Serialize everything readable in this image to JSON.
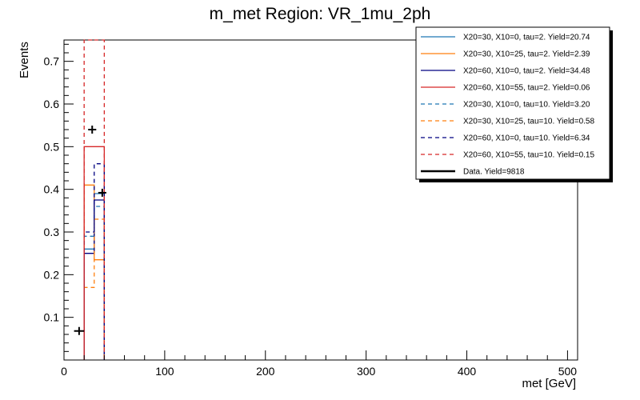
{
  "chart_data": {
    "type": "histogram",
    "title": "m_met Region: VR_1mu_2ph",
    "xlabel": "met [GeV]",
    "ylabel": "Events",
    "xlim": [
      0,
      510
    ],
    "ylim": [
      0,
      0.75
    ],
    "x_ticks": [
      0,
      100,
      200,
      300,
      400,
      500
    ],
    "y_ticks": [
      0.1,
      0.2,
      0.3,
      0.4,
      0.5,
      0.6,
      0.7
    ],
    "bin_edges": [
      20,
      30,
      40
    ],
    "series": [
      {
        "name": "X20=30, X10=0, tau=2. Yield=20.74",
        "color": "#1f77b4",
        "style": "solid",
        "values": [
          0.26,
          0.39
        ]
      },
      {
        "name": "X20=30, X10=25, tau=2. Yield=2.39",
        "color": "#ff7f0e",
        "style": "solid",
        "values": [
          0.41,
          0.235
        ]
      },
      {
        "name": "X20=60, X10=0, tau=2. Yield=34.48",
        "color": "#000080",
        "style": "solid",
        "values": [
          0.25,
          0.375
        ]
      },
      {
        "name": "X20=60, X10=55, tau=2. Yield=0.06",
        "color": "#d62728",
        "style": "solid",
        "values": [
          0.5,
          0.5
        ]
      },
      {
        "name": "X20=30, X10=0, tau=10. Yield=3.20",
        "color": "#1f77b4",
        "style": "dashed",
        "values": [
          0.29,
          0.36
        ]
      },
      {
        "name": "X20=30, X10=25, tau=10. Yield=0.58",
        "color": "#ff7f0e",
        "style": "dashed",
        "values": [
          0.17,
          0.33
        ]
      },
      {
        "name": "X20=60, X10=0, tau=10. Yield=6.34",
        "color": "#000080",
        "style": "dashed",
        "values": [
          0.3,
          0.46
        ]
      },
      {
        "name": "X20=60, X10=55, tau=10. Yield=0.15",
        "color": "#d62728",
        "style": "dashed",
        "values": [
          0.75,
          0.75
        ]
      }
    ],
    "data": {
      "name": "Data. Yield=9818",
      "color": "#000000",
      "points": [
        {
          "x": 15,
          "y": 0.068,
          "xerr": 5
        },
        {
          "x": 28,
          "y": 0.54,
          "xerr": 4
        },
        {
          "x": 38,
          "y": 0.392,
          "xerr": 4
        }
      ]
    },
    "legend": "top-right",
    "grid": false
  }
}
